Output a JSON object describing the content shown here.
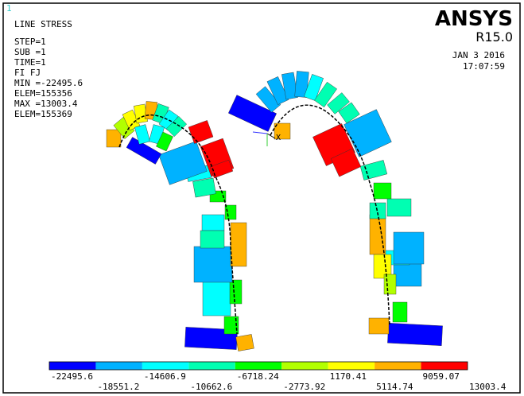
{
  "window_number": "1",
  "info": {
    "title": "LINE STRESS",
    "lines": [
      "STEP=1",
      "SUB =1",
      "TIME=1",
      "FI      FJ",
      "MIN =-22495.6",
      "ELEM=155356",
      "MAX =13003.4",
      "ELEM=155369"
    ]
  },
  "brand": {
    "name": "ANSYS",
    "release": "R15.0",
    "date": "JAN  3 2016",
    "time": "17:07:59"
  },
  "axis_label": "X",
  "legend": {
    "colors": [
      "#0000ff",
      "#00b2ff",
      "#00ffff",
      "#00ffb2",
      "#00ff00",
      "#b2ff00",
      "#ffff00",
      "#ffb200",
      "#ff0000"
    ],
    "labels": [
      "-22495.6",
      "-18551.2",
      "-14606.9",
      "-10662.6",
      "-6718.24",
      "-2773.92",
      "1170.41",
      "5114.74",
      "9059.07",
      "13003.4"
    ]
  }
}
